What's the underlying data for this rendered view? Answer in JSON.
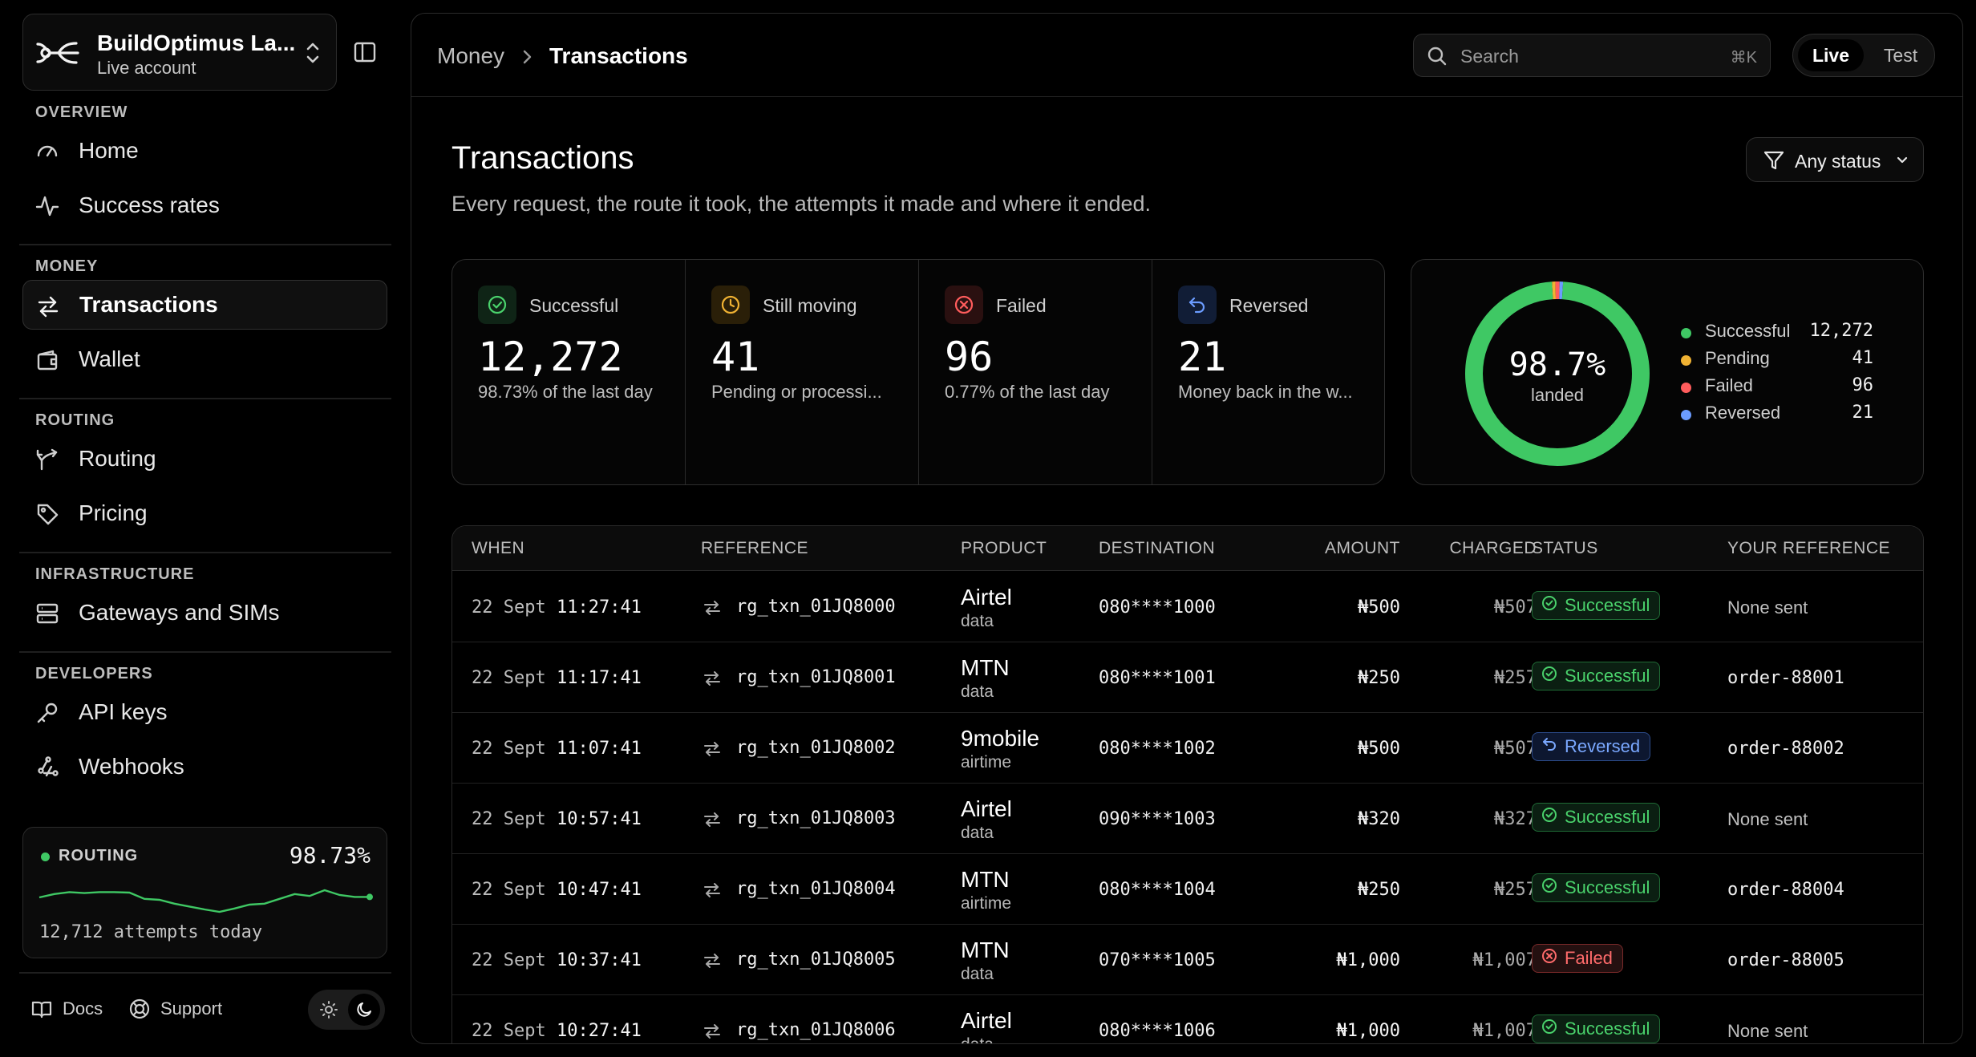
{
  "org": {
    "name": "BuildOptimus La...",
    "account": "Live account"
  },
  "sidebar": {
    "sections": [
      {
        "label": "OVERVIEW",
        "items": [
          {
            "label": "Home"
          },
          {
            "label": "Success rates"
          }
        ]
      },
      {
        "label": "MONEY",
        "items": [
          {
            "label": "Transactions",
            "active": true
          },
          {
            "label": "Wallet"
          }
        ]
      },
      {
        "label": "ROUTING",
        "items": [
          {
            "label": "Routing"
          },
          {
            "label": "Pricing"
          }
        ]
      },
      {
        "label": "INFRASTRUCTURE",
        "items": [
          {
            "label": "Gateways and SIMs"
          }
        ]
      },
      {
        "label": "DEVELOPERS",
        "items": [
          {
            "label": "API keys"
          },
          {
            "label": "Webhooks"
          }
        ]
      }
    ],
    "routing_card": {
      "title": "ROUTING",
      "percent": "98.73%",
      "footer": "12,712 attempts today",
      "sparkline": [
        0.55,
        0.62,
        0.66,
        0.64,
        0.66,
        0.66,
        0.65,
        0.52,
        0.5,
        0.42,
        0.36,
        0.3,
        0.25,
        0.32,
        0.4,
        0.42,
        0.52,
        0.62,
        0.58,
        0.7,
        0.6,
        0.56,
        0.56
      ]
    },
    "footer": {
      "docs": "Docs",
      "support": "Support"
    }
  },
  "topbar": {
    "breadcrumb": {
      "parent": "Money",
      "current": "Transactions"
    },
    "search": {
      "placeholder": "Search",
      "shortcut": "⌘K"
    },
    "mode": {
      "live": "Live",
      "test": "Test"
    }
  },
  "page": {
    "title": "Transactions",
    "subtitle": "Every request, the route it took, the attempts it made and where it ended.",
    "filter_label": "Any status"
  },
  "stats": [
    {
      "label": "Successful",
      "value": "12,272",
      "note": "98.73% of the last day",
      "icon": "check-circle-icon",
      "color": "#4ad26c"
    },
    {
      "label": "Still moving",
      "value": "41",
      "note": "Pending or processi...",
      "icon": "clock-icon",
      "color": "#f0b233"
    },
    {
      "label": "Failed",
      "value": "96",
      "note": "0.77% of the last day",
      "icon": "x-circle-icon",
      "color": "#ff5c5c"
    },
    {
      "label": "Reversed",
      "value": "21",
      "note": "Money back in the w...",
      "icon": "undo-arrow-icon",
      "color": "#6b9cff"
    }
  ],
  "donut": {
    "percent": "98.7%",
    "caption": "landed",
    "segments": [
      {
        "name": "Successful",
        "value": 12272,
        "display": "12,272",
        "color": "#3fc864"
      },
      {
        "name": "Pending",
        "value": 41,
        "display": "41",
        "color": "#f0b233"
      },
      {
        "name": "Failed",
        "value": 96,
        "display": "96",
        "color": "#ff5c5c"
      },
      {
        "name": "Reversed",
        "value": 21,
        "display": "21",
        "color": "#6b9cff"
      }
    ]
  },
  "table": {
    "headers": {
      "when": "WHEN",
      "reference": "REFERENCE",
      "product": "PRODUCT",
      "destination": "DESTINATION",
      "amount": "AMOUNT",
      "charged": "CHARGED",
      "status": "STATUS",
      "your_reference": "YOUR REFERENCE"
    },
    "rows": [
      {
        "date": "22 Sept",
        "time": "11:27:41",
        "ref": "rg_txn_01JQ8000",
        "product": "Airtel",
        "type": "data",
        "dest": "080****1000",
        "amount": "₦500",
        "charged": "₦507",
        "status": "Successful",
        "kind": "ok",
        "your_ref": "None sent"
      },
      {
        "date": "22 Sept",
        "time": "11:17:41",
        "ref": "rg_txn_01JQ8001",
        "product": "MTN",
        "type": "data",
        "dest": "080****1001",
        "amount": "₦250",
        "charged": "₦257",
        "status": "Successful",
        "kind": "ok",
        "your_ref": "order-88001"
      },
      {
        "date": "22 Sept",
        "time": "11:07:41",
        "ref": "rg_txn_01JQ8002",
        "product": "9mobile",
        "type": "airtime",
        "dest": "080****1002",
        "amount": "₦500",
        "charged": "₦507",
        "status": "Reversed",
        "kind": "rev",
        "your_ref": "order-88002"
      },
      {
        "date": "22 Sept",
        "time": "10:57:41",
        "ref": "rg_txn_01JQ8003",
        "product": "Airtel",
        "type": "data",
        "dest": "090****1003",
        "amount": "₦320",
        "charged": "₦327",
        "status": "Successful",
        "kind": "ok",
        "your_ref": "None sent"
      },
      {
        "date": "22 Sept",
        "time": "10:47:41",
        "ref": "rg_txn_01JQ8004",
        "product": "MTN",
        "type": "airtime",
        "dest": "080****1004",
        "amount": "₦250",
        "charged": "₦257",
        "status": "Successful",
        "kind": "ok",
        "your_ref": "order-88004"
      },
      {
        "date": "22 Sept",
        "time": "10:37:41",
        "ref": "rg_txn_01JQ8005",
        "product": "MTN",
        "type": "data",
        "dest": "070****1005",
        "amount": "₦1,000",
        "charged": "₦1,007",
        "status": "Failed",
        "kind": "fail",
        "your_ref": "order-88005"
      },
      {
        "date": "22 Sept",
        "time": "10:27:41",
        "ref": "rg_txn_01JQ8006",
        "product": "Airtel",
        "type": "data",
        "dest": "080****1006",
        "amount": "₦1,000",
        "charged": "₦1,007",
        "status": "Successful",
        "kind": "ok",
        "your_ref": "None sent"
      }
    ]
  }
}
